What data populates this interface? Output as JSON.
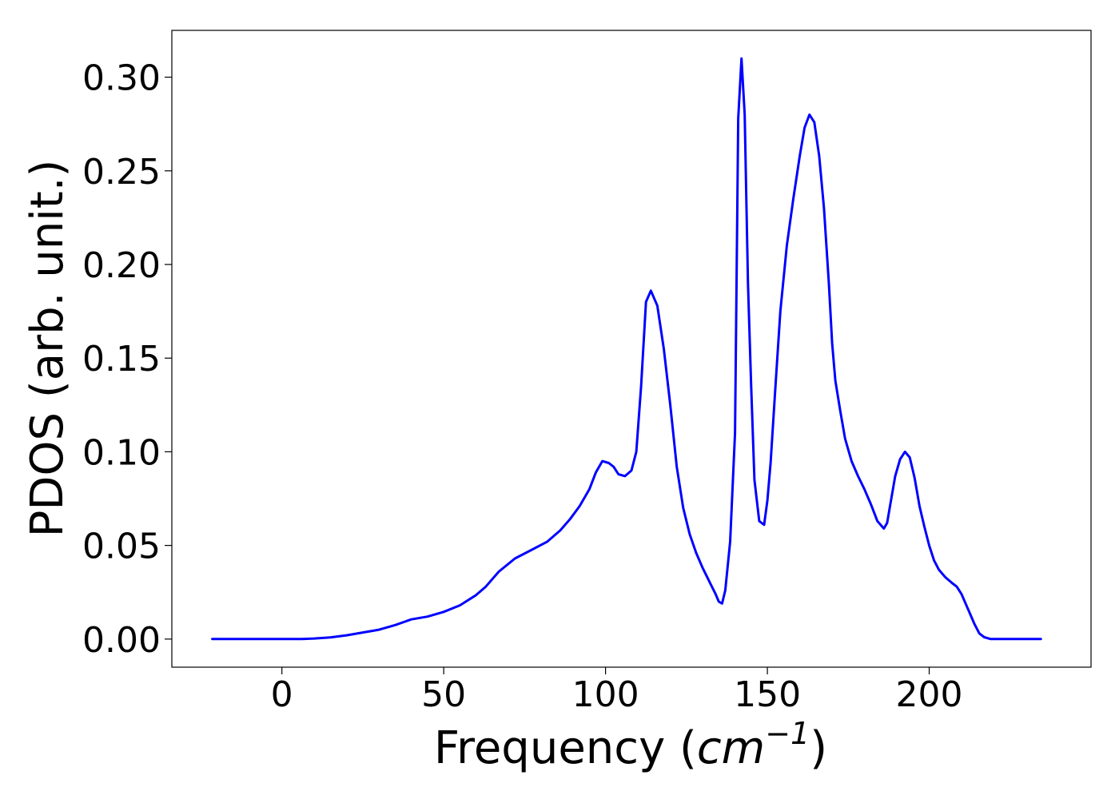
{
  "chart_data": {
    "type": "line",
    "title": "",
    "xlabel": "Frequency (cm⁻¹)",
    "xlabel_parts": {
      "prefix": "Frequency (",
      "unit": "cm",
      "exponent": "−1",
      "suffix": ")"
    },
    "ylabel": "PDOS (arb. unit.)",
    "xlim": [
      -34,
      250
    ],
    "ylim": [
      -0.015,
      0.325
    ],
    "grid": false,
    "legend": "none",
    "line_color": "#0000ff",
    "x_ticks": [
      0,
      50,
      100,
      150,
      200
    ],
    "x_tick_labels": [
      "0",
      "50",
      "100",
      "150",
      "200"
    ],
    "y_ticks": [
      0.0,
      0.05,
      0.1,
      0.15,
      0.2,
      0.25,
      0.3
    ],
    "y_tick_labels": [
      "0.00",
      "0.05",
      "0.10",
      "0.15",
      "0.20",
      "0.25",
      "0.30"
    ],
    "series": [
      {
        "x": [
          -21.5,
          0,
          6,
          10,
          15,
          20,
          25,
          30,
          35,
          40,
          45,
          50,
          55,
          60,
          63,
          67,
          72,
          77,
          82,
          86,
          89,
          92,
          95,
          97,
          99,
          101,
          102.5,
          104,
          106,
          108,
          109.5,
          111,
          112.5,
          114,
          116,
          118,
          120,
          122,
          124,
          126,
          128,
          130,
          132,
          134,
          135,
          136,
          137,
          138.5,
          140,
          141,
          142,
          143,
          144,
          145,
          146,
          147.5,
          149,
          150,
          151,
          152.5,
          154,
          156,
          158,
          160,
          161.5,
          163,
          164.5,
          166,
          167.5,
          169,
          170,
          171,
          172.5,
          174,
          176,
          178,
          180,
          182,
          184,
          186,
          187,
          188,
          189.5,
          191,
          192.5,
          194,
          195.5,
          197,
          198.5,
          200,
          201.5,
          203,
          205,
          207,
          208.5,
          210,
          212,
          214,
          215.5,
          217,
          219,
          221,
          234.5
        ],
        "y": [
          0,
          0,
          0,
          0.0003,
          0.0009,
          0.002,
          0.0035,
          0.005,
          0.0075,
          0.0105,
          0.012,
          0.0145,
          0.018,
          0.0235,
          0.028,
          0.036,
          0.043,
          0.0475,
          0.052,
          0.058,
          0.064,
          0.071,
          0.08,
          0.089,
          0.095,
          0.094,
          0.092,
          0.088,
          0.087,
          0.09,
          0.1,
          0.135,
          0.18,
          0.186,
          0.178,
          0.155,
          0.125,
          0.092,
          0.07,
          0.056,
          0.046,
          0.038,
          0.031,
          0.024,
          0.02,
          0.019,
          0.026,
          0.052,
          0.11,
          0.278,
          0.31,
          0.28,
          0.19,
          0.135,
          0.085,
          0.063,
          0.061,
          0.074,
          0.094,
          0.135,
          0.175,
          0.21,
          0.235,
          0.258,
          0.273,
          0.28,
          0.276,
          0.258,
          0.23,
          0.19,
          0.158,
          0.138,
          0.122,
          0.107,
          0.095,
          0.087,
          0.08,
          0.072,
          0.063,
          0.059,
          0.062,
          0.072,
          0.087,
          0.096,
          0.1,
          0.097,
          0.086,
          0.071,
          0.06,
          0.05,
          0.042,
          0.037,
          0.033,
          0.03,
          0.028,
          0.024,
          0.016,
          0.008,
          0.003,
          0.001,
          0,
          0,
          0
        ]
      }
    ]
  }
}
